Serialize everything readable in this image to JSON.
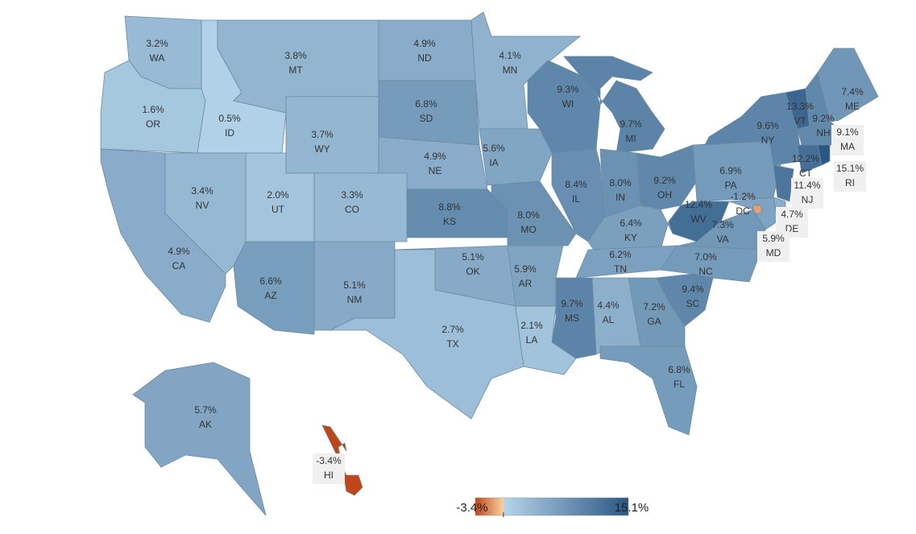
{
  "chart_data": {
    "type": "choropleth",
    "categories": [
      "WA",
      "OR",
      "ID",
      "MT",
      "WY",
      "ND",
      "SD",
      "MN",
      "NE",
      "IA",
      "WI",
      "MI",
      "IL",
      "IN",
      "OH",
      "PA",
      "NY",
      "VT",
      "NH",
      "ME",
      "MA",
      "CT",
      "RI",
      "NJ",
      "DE",
      "MD",
      "DC",
      "WV",
      "VA",
      "KY",
      "TN",
      "NC",
      "SC",
      "GA",
      "AL",
      "MS",
      "FL",
      "LA",
      "AR",
      "MO",
      "KS",
      "OK",
      "TX",
      "NM",
      "AZ",
      "CO",
      "UT",
      "NV",
      "CA",
      "AK",
      "HI"
    ],
    "values": [
      3.2,
      1.6,
      0.5,
      3.8,
      3.7,
      4.9,
      6.8,
      4.1,
      4.9,
      5.6,
      9.3,
      9.7,
      8.4,
      8.0,
      9.2,
      6.9,
      9.6,
      13.3,
      9.2,
      7.4,
      9.1,
      12.2,
      15.1,
      11.4,
      4.7,
      5.9,
      -1.2,
      12.4,
      7.3,
      6.4,
      6.2,
      7.0,
      9.4,
      7.2,
      4.4,
      9.7,
      6.8,
      2.1,
      5.9,
      8.0,
      8.8,
      5.1,
      2.7,
      5.1,
      6.6,
      3.3,
      2.0,
      3.4,
      4.9,
      5.7,
      -3.4
    ],
    "value_labels": [
      "3.2%",
      "1.6%",
      "0.5%",
      "3.8%",
      "3.7%",
      "4.9%",
      "6.8%",
      "4.1%",
      "4.9%",
      "5.6%",
      "9.3%",
      "9.7%",
      "8.4%",
      "8.0%",
      "9.2%",
      "6.9%",
      "9.6%",
      "13.3%",
      "9.2%",
      "7.4%",
      "9.1%",
      "12.2%",
      "15.1%",
      "11.4%",
      "4.7%",
      "5.9%",
      "-1.2%",
      "12.4%",
      "7.3%",
      "6.4%",
      "6.2%",
      "7.0%",
      "9.4%",
      "7.2%",
      "4.4%",
      "9.7%",
      "6.8%",
      "2.1%",
      "5.9%",
      "8.0%",
      "8.8%",
      "5.1%",
      "2.7%",
      "5.1%",
      "6.6%",
      "3.3%",
      "2.0%",
      "3.4%",
      "4.9%",
      "5.7%",
      "-3.4%"
    ],
    "legend": {
      "min": {
        "value": -3.4,
        "label": "-3.4%"
      },
      "max": {
        "value": 15.1,
        "label": "15.1%"
      }
    },
    "colors": {
      "low": "#c0461a",
      "low_mid": "#f9d2a0",
      "high_mid": "#b5d5ea",
      "high": "#2a5783"
    }
  }
}
